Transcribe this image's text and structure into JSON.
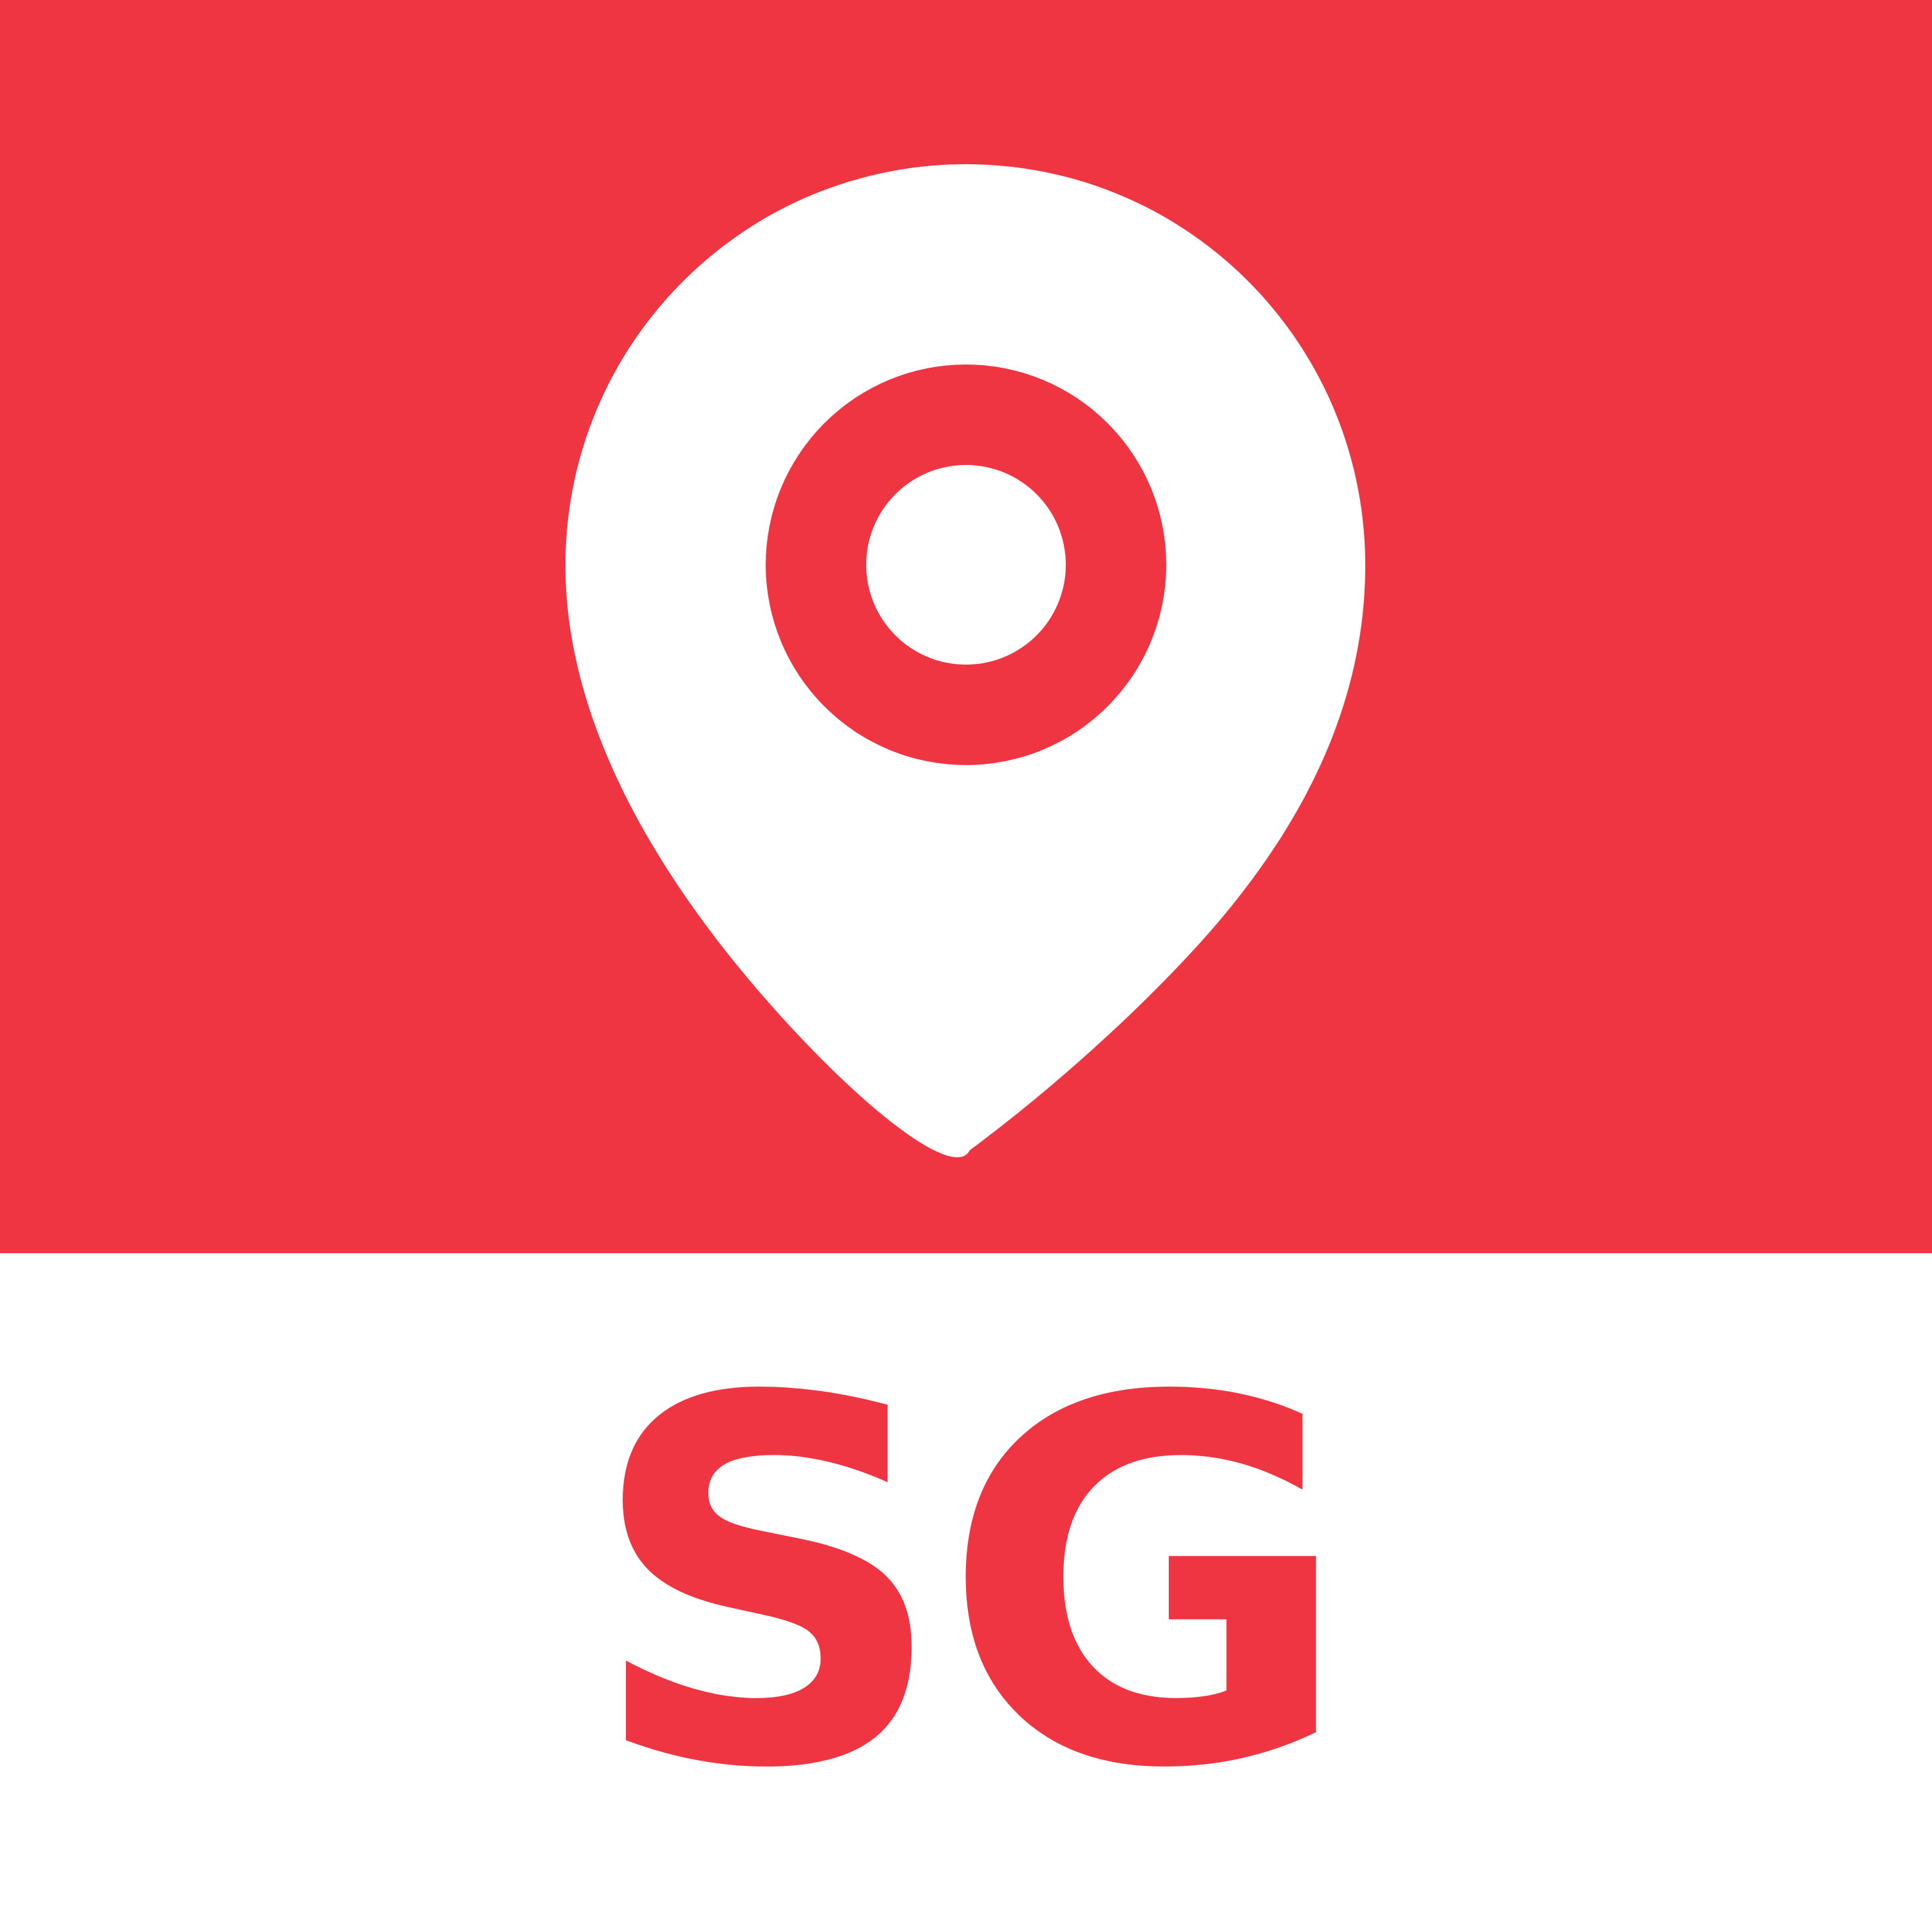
{
  "colors": {
    "brand_red": "#EF3442",
    "white": "#FFFFFF"
  },
  "icon": {
    "name": "location-pin-icon"
  },
  "label": {
    "text": "SG"
  }
}
